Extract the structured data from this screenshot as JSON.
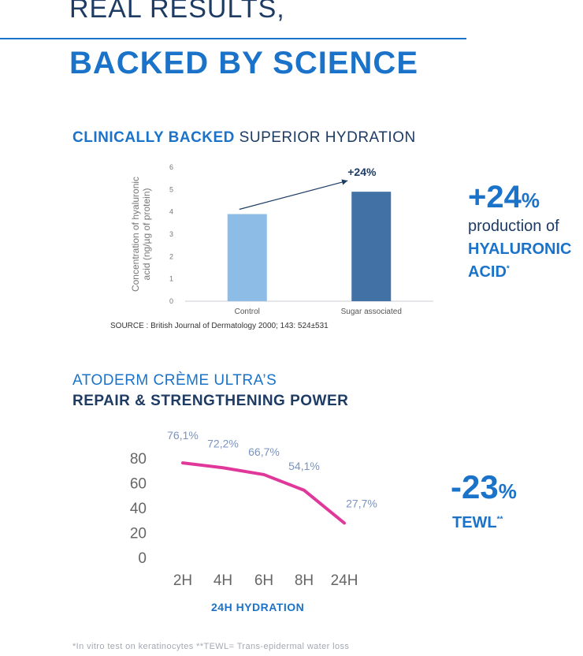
{
  "header": {
    "line1": "REAL RESULTS,",
    "line2": "BACKED BY SCIENCE"
  },
  "section1": {
    "title_bold": "CLINICALLY BACKED",
    "title_rest": " SUPERIOR HYDRATION",
    "source": "SOURCE : British Journal of Dermatology 2000; 143: 524±531",
    "stat_value": "+24",
    "stat_unit": "%",
    "stat_line1": "production of",
    "stat_line2": "HYALURONIC",
    "stat_line3": "ACID",
    "stat_mark": "*"
  },
  "section2": {
    "title_line1": "ATODERM CRÈME ULTRA’S",
    "title_line2": "REPAIR & STRENGTHENING POWER",
    "stat_value": "-23",
    "stat_unit": "%",
    "stat_label": "TEWL",
    "stat_mark": "**"
  },
  "footnote": "*In vitro test on keratinocytes **TEWL= Trans-epidermal water loss",
  "chart_data": [
    {
      "type": "bar",
      "title": "",
      "ylabel": "Concentration of hyaluronic acid (ng/µg of protein)",
      "xlabel": "",
      "categories": [
        "Control",
        "Sugar associated"
      ],
      "values": [
        3.9,
        4.9
      ],
      "ylim": [
        0,
        6
      ],
      "yticks": [
        0,
        1,
        2,
        3,
        4,
        5,
        6
      ],
      "colors": [
        "#8dbce6",
        "#4271a5"
      ],
      "annotation": "+24%",
      "grid": false
    },
    {
      "type": "line",
      "title": "",
      "xlabel": "24H HYDRATION",
      "ylabel": "",
      "categories": [
        "2H",
        "4H",
        "6H",
        "8H",
        "24H"
      ],
      "values": [
        76.1,
        72.2,
        66.7,
        54.1,
        27.7
      ],
      "labels": [
        "76,1%",
        "72,2%",
        "66,7%",
        "54,1%",
        "27,7%"
      ],
      "ylim": [
        0,
        80
      ],
      "yticks": [
        0,
        20,
        40,
        60,
        80
      ],
      "line_color": "#e0389a",
      "label_color": "#7a93c0",
      "grid": false
    }
  ]
}
